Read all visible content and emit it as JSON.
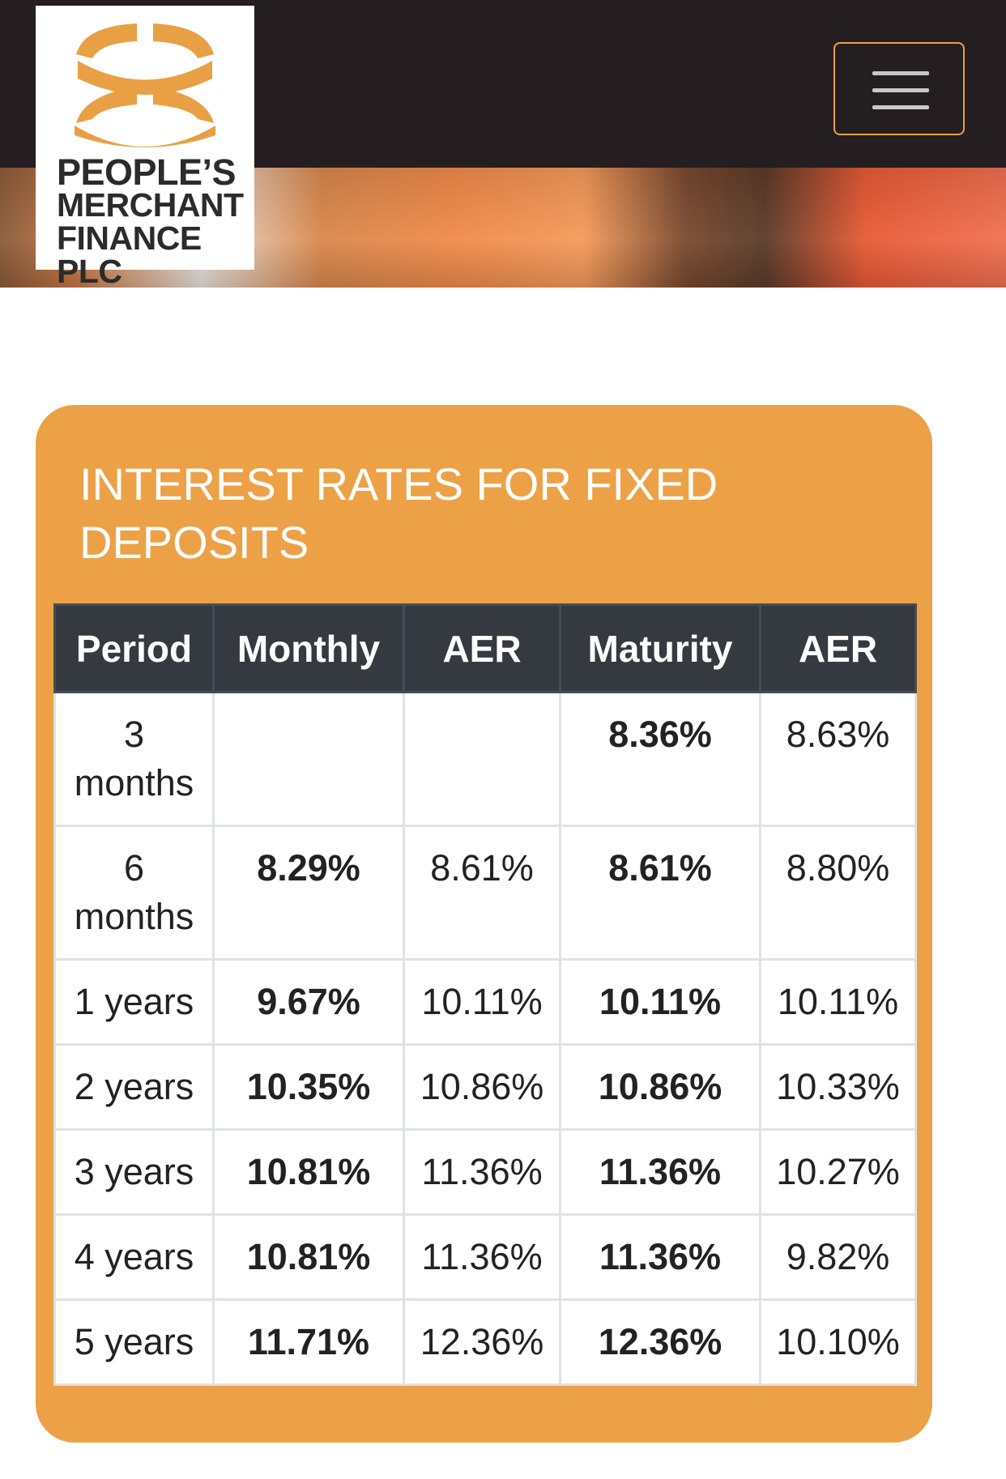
{
  "header": {
    "logo_lines": [
      "PEOPLE’S",
      "MERCHANT",
      "FINANCE PLC"
    ]
  },
  "card": {
    "title": "INTEREST RATES FOR FIXED DEPOSITS"
  },
  "table": {
    "headers": [
      "Period",
      "Monthly",
      "AER",
      "Maturity",
      "AER"
    ],
    "rows": [
      [
        "3 months",
        null,
        null,
        "8.36%",
        "8.63%"
      ],
      [
        "6 months",
        "8.29%",
        "8.61%",
        "8.61%",
        "8.80%"
      ],
      [
        "1 years",
        "9.67%",
        "10.11%",
        "10.11%",
        "10.11%"
      ],
      [
        "2 years",
        "10.35%",
        "10.86%",
        "10.86%",
        "10.33%"
      ],
      [
        "3 years",
        "10.81%",
        "11.36%",
        "11.36%",
        "10.27%"
      ],
      [
        "4 years",
        "10.81%",
        "11.36%",
        "11.36%",
        "9.82%"
      ],
      [
        "5 years",
        "11.71%",
        "12.36%",
        "12.36%",
        "10.10%"
      ]
    ]
  }
}
